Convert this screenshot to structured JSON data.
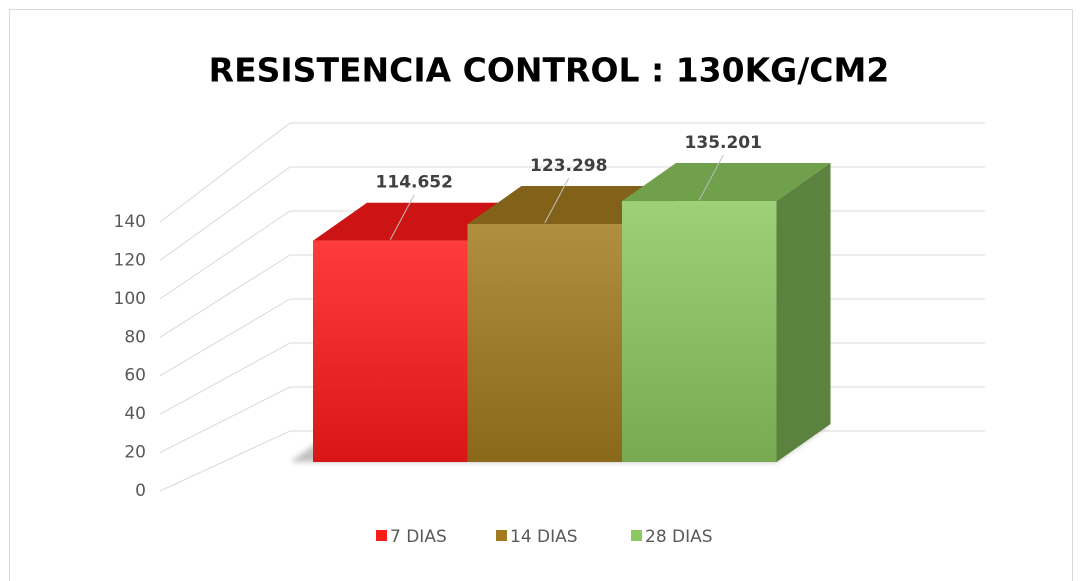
{
  "chart_data": {
    "type": "bar3d",
    "title": "RESISTENCIA CONTROL : 130KG/CM2",
    "series": [
      {
        "name": "7 DIAS",
        "color": "#ff1a1a",
        "values": [
          114.652
        ]
      },
      {
        "name": "14 DIAS",
        "color": "#a27b1e",
        "values": [
          123.298
        ]
      },
      {
        "name": "28 DIAS",
        "color": "#8cc860",
        "values": [
          135.201
        ]
      }
    ],
    "ylim": [
      0,
      140
    ],
    "yticks": [
      0,
      20,
      40,
      60,
      80,
      100,
      120,
      140
    ],
    "grid": true,
    "legend": "bottom"
  }
}
